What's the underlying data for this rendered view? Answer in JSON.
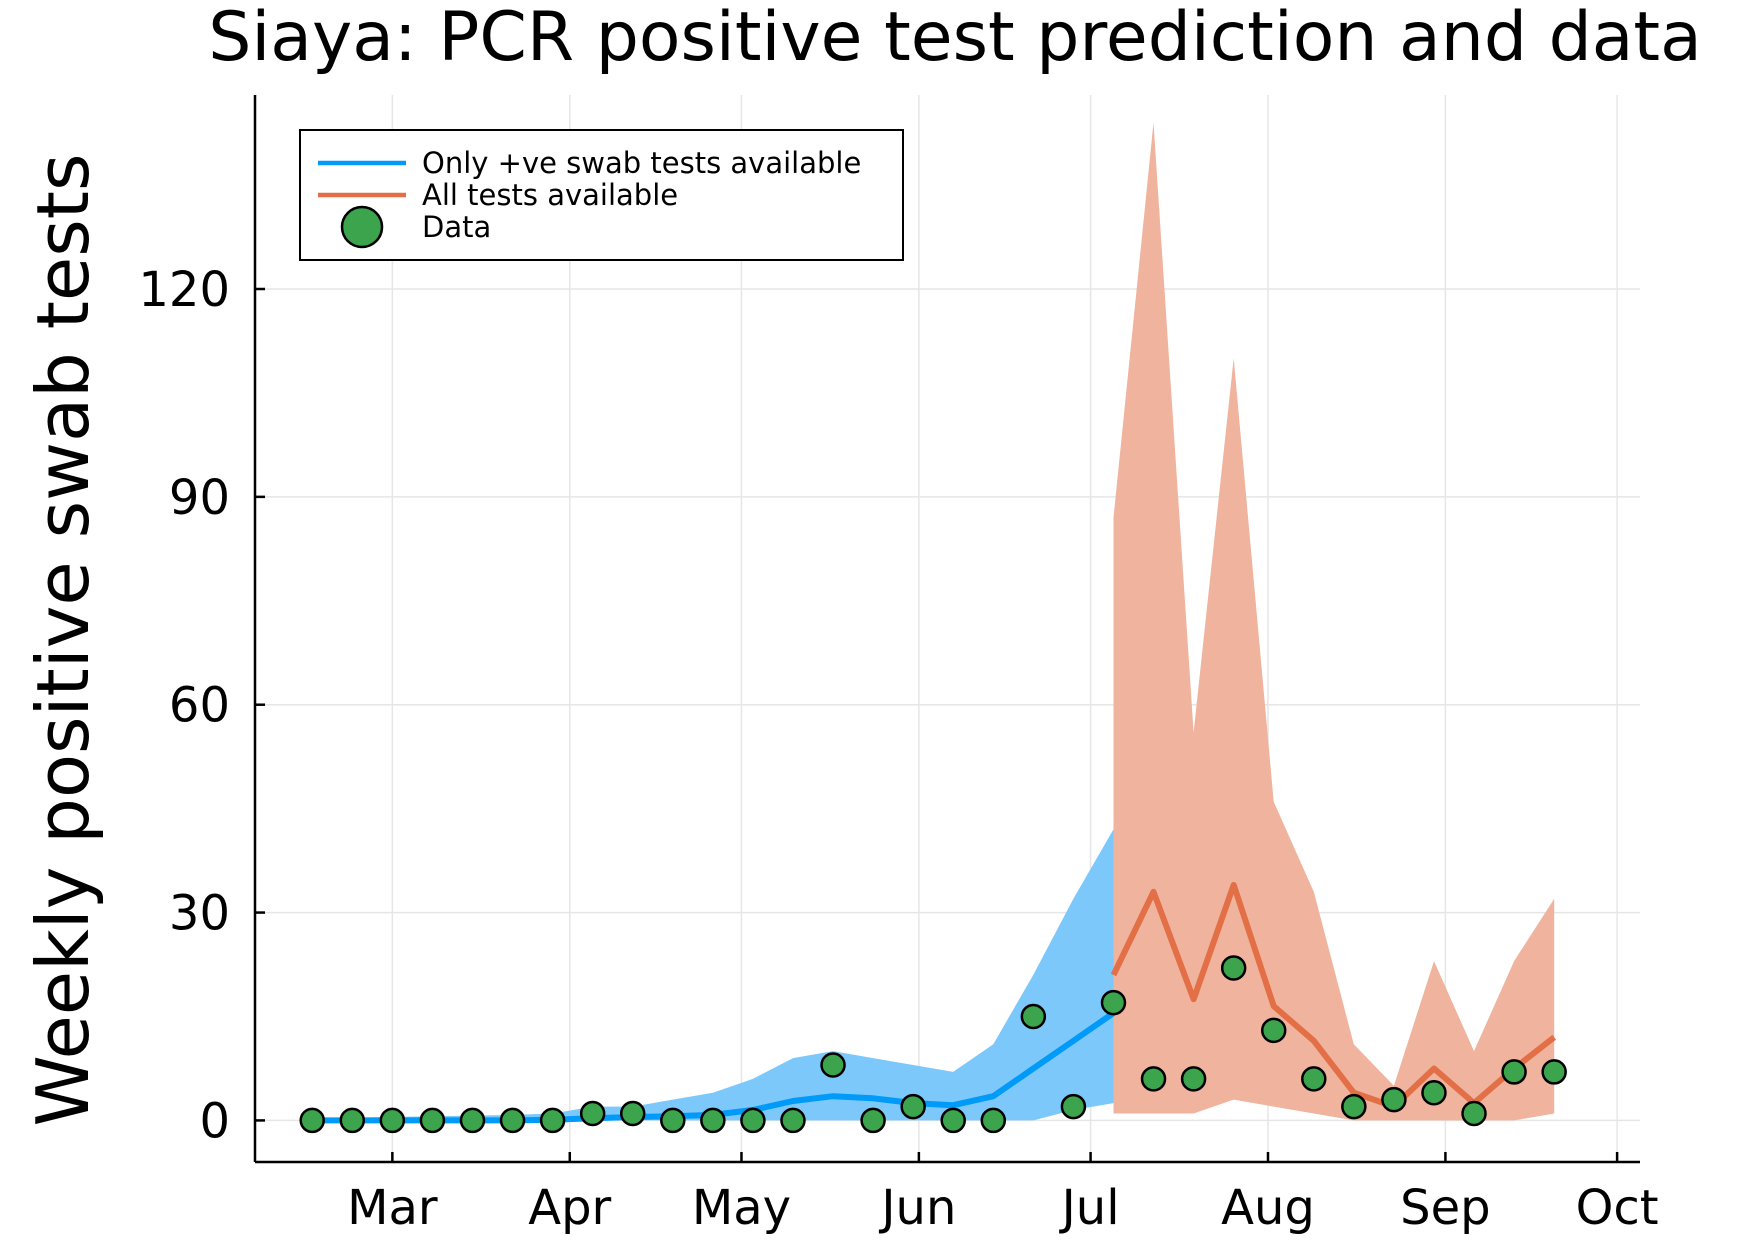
{
  "colors": {
    "blue_line": "#009af9",
    "blue_band": "#7cc8fb",
    "orange_line": "#e26f46",
    "orange_band": "#f0b39e",
    "data_marker": "#3ca44c"
  },
  "chart_data": {
    "type": "line",
    "title": "Siaya: PCR positive test prediction and data",
    "ylabel": "Weekly positive swab tests",
    "xlabel": "",
    "x_axis": {
      "type": "date",
      "ticks": [
        {
          "date": "2021-03-01",
          "label": "Mar"
        },
        {
          "date": "2021-04-01",
          "label": "Apr"
        },
        {
          "date": "2021-05-01",
          "label": "May"
        },
        {
          "date": "2021-06-01",
          "label": "Jun"
        },
        {
          "date": "2021-07-01",
          "label": "Jul"
        },
        {
          "date": "2021-08-01",
          "label": "Aug"
        },
        {
          "date": "2021-09-01",
          "label": "Sep"
        },
        {
          "date": "2021-10-01",
          "label": "Oct"
        }
      ]
    },
    "y_axis": {
      "ylim": [
        -6,
        148
      ],
      "ticks": [
        0,
        30,
        60,
        90,
        120
      ]
    },
    "grid": true,
    "legend": {
      "placement": "top-left",
      "entries": [
        {
          "label": "Only +ve swab tests available",
          "series": "only_positive"
        },
        {
          "label": "All tests available",
          "series": "all_tests"
        },
        {
          "label": "Data",
          "series": "data"
        }
      ]
    },
    "series": [
      {
        "key": "only_positive",
        "name": "Only +ve swab tests available",
        "kind": "line_with_band",
        "x": [
          "2021-02-15",
          "2021-02-22",
          "2021-03-01",
          "2021-03-08",
          "2021-03-15",
          "2021-03-22",
          "2021-03-29",
          "2021-04-05",
          "2021-04-12",
          "2021-04-19",
          "2021-04-26",
          "2021-05-03",
          "2021-05-10",
          "2021-05-17",
          "2021-05-24",
          "2021-05-31",
          "2021-06-07",
          "2021-06-14",
          "2021-06-21",
          "2021-06-28",
          "2021-07-05"
        ],
        "y": [
          0,
          0,
          0,
          0,
          0,
          0,
          0.1,
          0.3,
          0.5,
          0.6,
          0.8,
          1.5,
          2.8,
          3.5,
          3.2,
          2.5,
          2.2,
          3.5,
          7.5,
          11.5,
          15.5
        ],
        "lower": [
          0,
          0,
          0,
          0,
          0,
          0,
          0,
          0,
          0,
          0,
          0,
          0,
          0,
          0,
          0,
          0,
          0,
          0,
          0,
          1.5,
          2.5
        ],
        "upper": [
          0.3,
          0.4,
          0.5,
          0.6,
          0.7,
          0.8,
          1.0,
          2.0,
          2.0,
          3.0,
          4.0,
          6.0,
          9.0,
          10.0,
          9.0,
          8.0,
          7.0,
          11.0,
          21.0,
          32.0,
          42.0
        ]
      },
      {
        "key": "all_tests",
        "name": "All tests available",
        "kind": "line_with_band",
        "x": [
          "2021-07-05",
          "2021-07-12",
          "2021-07-19",
          "2021-07-26",
          "2021-08-02",
          "2021-08-09",
          "2021-08-16",
          "2021-08-23",
          "2021-08-30",
          "2021-09-06",
          "2021-09-13",
          "2021-09-20"
        ],
        "y": [
          21,
          33,
          17.5,
          34,
          16.5,
          11.5,
          4,
          2,
          7.5,
          2.5,
          7.5,
          12
        ],
        "lower": [
          1,
          1,
          1,
          3,
          2,
          1,
          0,
          0,
          0,
          0,
          0,
          1
        ],
        "upper": [
          87,
          144,
          56,
          110,
          46,
          33,
          11,
          5,
          23,
          10,
          23,
          32
        ]
      },
      {
        "key": "data",
        "name": "Data",
        "kind": "scatter",
        "x": [
          "2021-02-15",
          "2021-02-22",
          "2021-03-01",
          "2021-03-08",
          "2021-03-15",
          "2021-03-22",
          "2021-03-29",
          "2021-04-05",
          "2021-04-12",
          "2021-04-19",
          "2021-04-26",
          "2021-05-03",
          "2021-05-10",
          "2021-05-17",
          "2021-05-24",
          "2021-05-31",
          "2021-06-07",
          "2021-06-14",
          "2021-06-21",
          "2021-06-28",
          "2021-07-05",
          "2021-07-12",
          "2021-07-19",
          "2021-07-26",
          "2021-08-02",
          "2021-08-09",
          "2021-08-16",
          "2021-08-23",
          "2021-08-30",
          "2021-09-06",
          "2021-09-13",
          "2021-09-20"
        ],
        "y": [
          0,
          0,
          0,
          0,
          0,
          0,
          0,
          1,
          1,
          0,
          0,
          0,
          0,
          8,
          0,
          2,
          0,
          0,
          15,
          2,
          17,
          6,
          6,
          22,
          13,
          6,
          2,
          3,
          4,
          1,
          7,
          7
        ]
      }
    ]
  }
}
